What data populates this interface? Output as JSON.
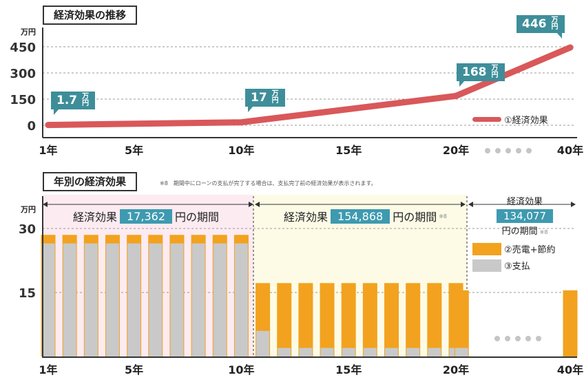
{
  "top": {
    "title": "経済効果の推移",
    "unit": "万円",
    "legend": "①経済効果",
    "callouts": [
      {
        "value": "1.7",
        "unit": "万円"
      },
      {
        "value": "17",
        "unit": "万円"
      },
      {
        "value": "168",
        "unit": "万円"
      },
      {
        "value": "446",
        "unit": "万円"
      }
    ]
  },
  "bottom": {
    "title": "年別の経済効果",
    "note": "※8　期間中にローンの支払が完了する場合は、支払完了前の経済効果が表示されます。",
    "unit": "万円",
    "periods": [
      {
        "prefix": "経済効果",
        "value": "17,362",
        "suffix": "円の期間",
        "sup": ""
      },
      {
        "prefix": "経済効果",
        "value": "154,868",
        "suffix": "円の期間",
        "sup": "※8"
      },
      {
        "prefix": "経済効果",
        "value": "134,077",
        "suffix": "円の期間",
        "sup": "※8"
      }
    ],
    "legend": [
      {
        "label": "②売電+節約",
        "color": "#f2a21e"
      },
      {
        "label": "③支払",
        "color": "#c9c9c9"
      }
    ]
  },
  "colors": {
    "line": "#d9585a",
    "accent": "#3e8e9a",
    "orange": "#f2a21e",
    "gray": "#c9c9c9"
  },
  "chart_data": [
    {
      "type": "line",
      "title": "経済効果の推移",
      "ylabel": "万円",
      "x_ticks": [
        "1年",
        "5年",
        "10年",
        "15年",
        "20年",
        "40年"
      ],
      "y_ticks": [
        0,
        150,
        300,
        450
      ],
      "ylim": [
        0,
        480
      ],
      "grid": true,
      "series": [
        {
          "name": "①経済効果",
          "x": [
            1,
            10,
            20,
            40
          ],
          "values": [
            1.7,
            17,
            168,
            446
          ]
        }
      ]
    },
    {
      "type": "bar",
      "title": "年別の経済効果",
      "ylabel": "万円",
      "x_ticks": [
        "1年",
        "5年",
        "10年",
        "15年",
        "20年",
        "40年"
      ],
      "y_ticks": [
        15,
        30
      ],
      "ylim": [
        0,
        31
      ],
      "grid": true,
      "years": [
        1,
        2,
        3,
        4,
        5,
        6,
        7,
        8,
        9,
        10,
        11,
        12,
        13,
        14,
        15,
        16,
        17,
        18,
        19,
        20,
        21,
        40
      ],
      "series": [
        {
          "name": "②売電+節約",
          "values": [
            28.5,
            28.5,
            28.5,
            28.5,
            28.5,
            28.5,
            28.5,
            28.5,
            28.5,
            28.5,
            17.2,
            17.2,
            17.2,
            17.2,
            17.2,
            17.2,
            17.2,
            17.2,
            17.2,
            17.2,
            15.5,
            15.5
          ]
        },
        {
          "name": "③支払",
          "values": [
            26.5,
            26.5,
            26.5,
            26.5,
            26.5,
            26.5,
            26.5,
            26.5,
            26.5,
            26.5,
            6,
            2,
            2,
            2,
            2,
            2,
            2,
            2,
            2,
            2,
            2,
            0
          ]
        }
      ]
    }
  ]
}
